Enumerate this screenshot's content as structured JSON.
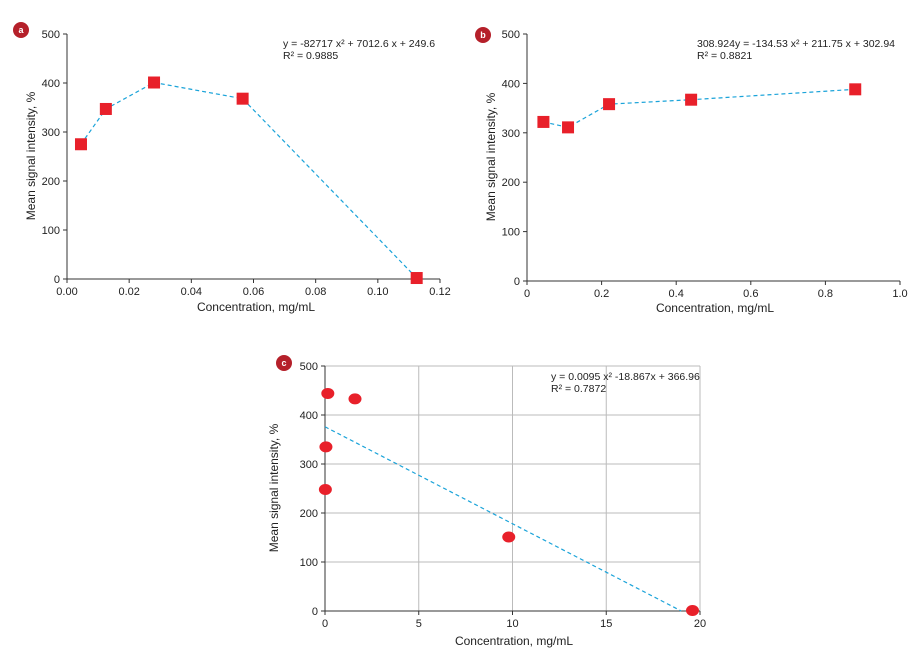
{
  "colors": {
    "marker": "#e8202a",
    "fit_line": "#1aa3d9",
    "axis": "#333333",
    "grid": "#bbbbbb",
    "badge": "#b5202a"
  },
  "chart_data": [
    {
      "panel": "a",
      "type": "scatter",
      "marker": "square-icon",
      "connect_points": true,
      "title": "",
      "xlabel": "Concentration, mg/mL",
      "ylabel": "Mean signal intensity, %",
      "xlim": [
        0,
        0.12
      ],
      "ylim": [
        0,
        500
      ],
      "xticks": [
        "0.00",
        "0.02",
        "0.04",
        "0.06",
        "0.08",
        "0.10",
        "0.12"
      ],
      "yticks": [
        "0",
        "100",
        "200",
        "300",
        "400",
        "500"
      ],
      "grid": false,
      "equation": "y = -82717 x² + 7012.6 x + 249.6",
      "r2": "R² = 0.9885",
      "x": [
        0.0045,
        0.0125,
        0.028,
        0.0565,
        0.1125
      ],
      "y": [
        275,
        347,
        401,
        368,
        2
      ]
    },
    {
      "panel": "b",
      "type": "scatter",
      "marker": "square-icon",
      "connect_points": true,
      "title": "",
      "xlabel": "Concentration, mg/mL",
      "ylabel": "Mean signal intensity, %",
      "xlim": [
        0,
        1.0
      ],
      "ylim": [
        0,
        500
      ],
      "xticks": [
        "0",
        "0.2",
        "0.4",
        "0.6",
        "0.8",
        "1.0"
      ],
      "yticks": [
        "0",
        "100",
        "200",
        "300",
        "400",
        "500"
      ],
      "grid": false,
      "equation": "308.924y = -134.53 x² + 211.75 x + 302.94",
      "r2": "R² = 0.8821",
      "x": [
        0.044,
        0.11,
        0.22,
        0.44,
        0.88
      ],
      "y": [
        322,
        311,
        358,
        367,
        388
      ]
    },
    {
      "panel": "c",
      "type": "scatter",
      "marker": "circle-icon",
      "connect_points": false,
      "title": "",
      "xlabel": "Concentration, mg/mL",
      "ylabel": "Mean signal intensity, %",
      "xlim": [
        0,
        20
      ],
      "ylim": [
        0,
        500
      ],
      "xticks": [
        "0",
        "5",
        "10",
        "15",
        "20"
      ],
      "yticks": [
        "0",
        "100",
        "200",
        "300",
        "400",
        "500"
      ],
      "grid": true,
      "equation": "y = 0.0095 x² -18.867x + 366.96",
      "r2": "R² = 0.7872",
      "x": [
        0.02,
        0.05,
        0.15,
        1.6,
        9.8,
        19.6
      ],
      "y": [
        248,
        335,
        444,
        433,
        151,
        1
      ],
      "trend": {
        "x": [
          0,
          19
        ],
        "y": [
          376,
          0
        ]
      }
    }
  ]
}
